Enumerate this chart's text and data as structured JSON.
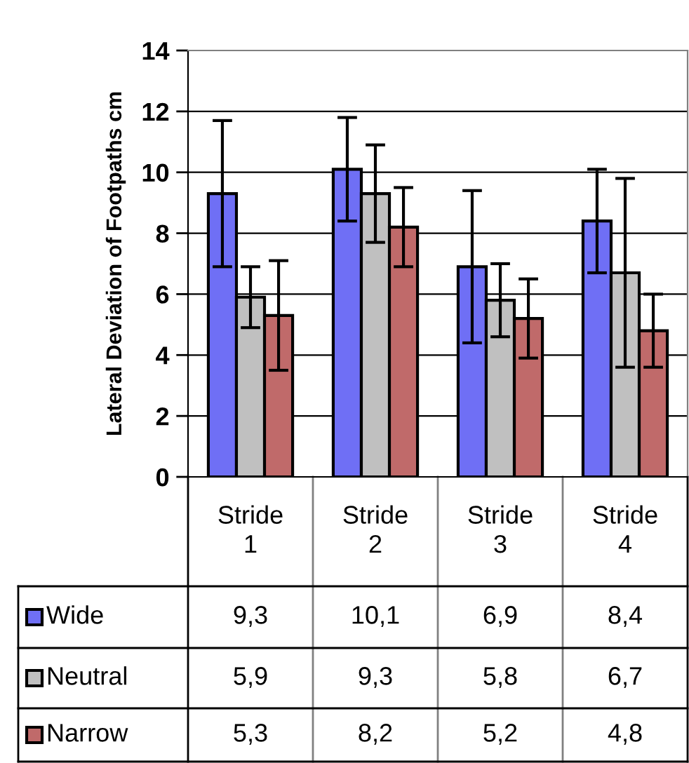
{
  "chart_data": {
    "type": "bar",
    "ylabel": "Lateral Deviation of Footpaths cm",
    "categories": [
      "Stride\n1",
      "Stride\n2",
      "Stride\n3",
      "Stride\n4"
    ],
    "series": [
      {
        "name": "Wide",
        "color": "#6f6ff5",
        "values": [
          9.3,
          10.1,
          6.9,
          8.4
        ],
        "errors": [
          2.4,
          1.7,
          2.5,
          1.7
        ],
        "value_labels": [
          "9,3",
          "10,1",
          "6,9",
          "8,4"
        ]
      },
      {
        "name": "Neutral",
        "color": "#c0c0c0",
        "values": [
          5.9,
          9.3,
          5.8,
          6.7
        ],
        "errors": [
          1.0,
          1.6,
          1.2,
          3.1
        ],
        "value_labels": [
          "5,9",
          "9,3",
          "5,8",
          "6,7"
        ]
      },
      {
        "name": "Narrow",
        "color": "#c06a6a",
        "values": [
          5.3,
          8.2,
          5.2,
          4.8
        ],
        "errors": [
          1.8,
          1.3,
          1.3,
          1.2
        ],
        "value_labels": [
          "5,3",
          "8,2",
          "5,2",
          "4,8"
        ]
      }
    ],
    "ylim": [
      0,
      14
    ],
    "yticks": [
      0,
      2,
      4,
      6,
      8,
      10,
      12,
      14
    ],
    "grid": "y",
    "legend": "bottom"
  }
}
